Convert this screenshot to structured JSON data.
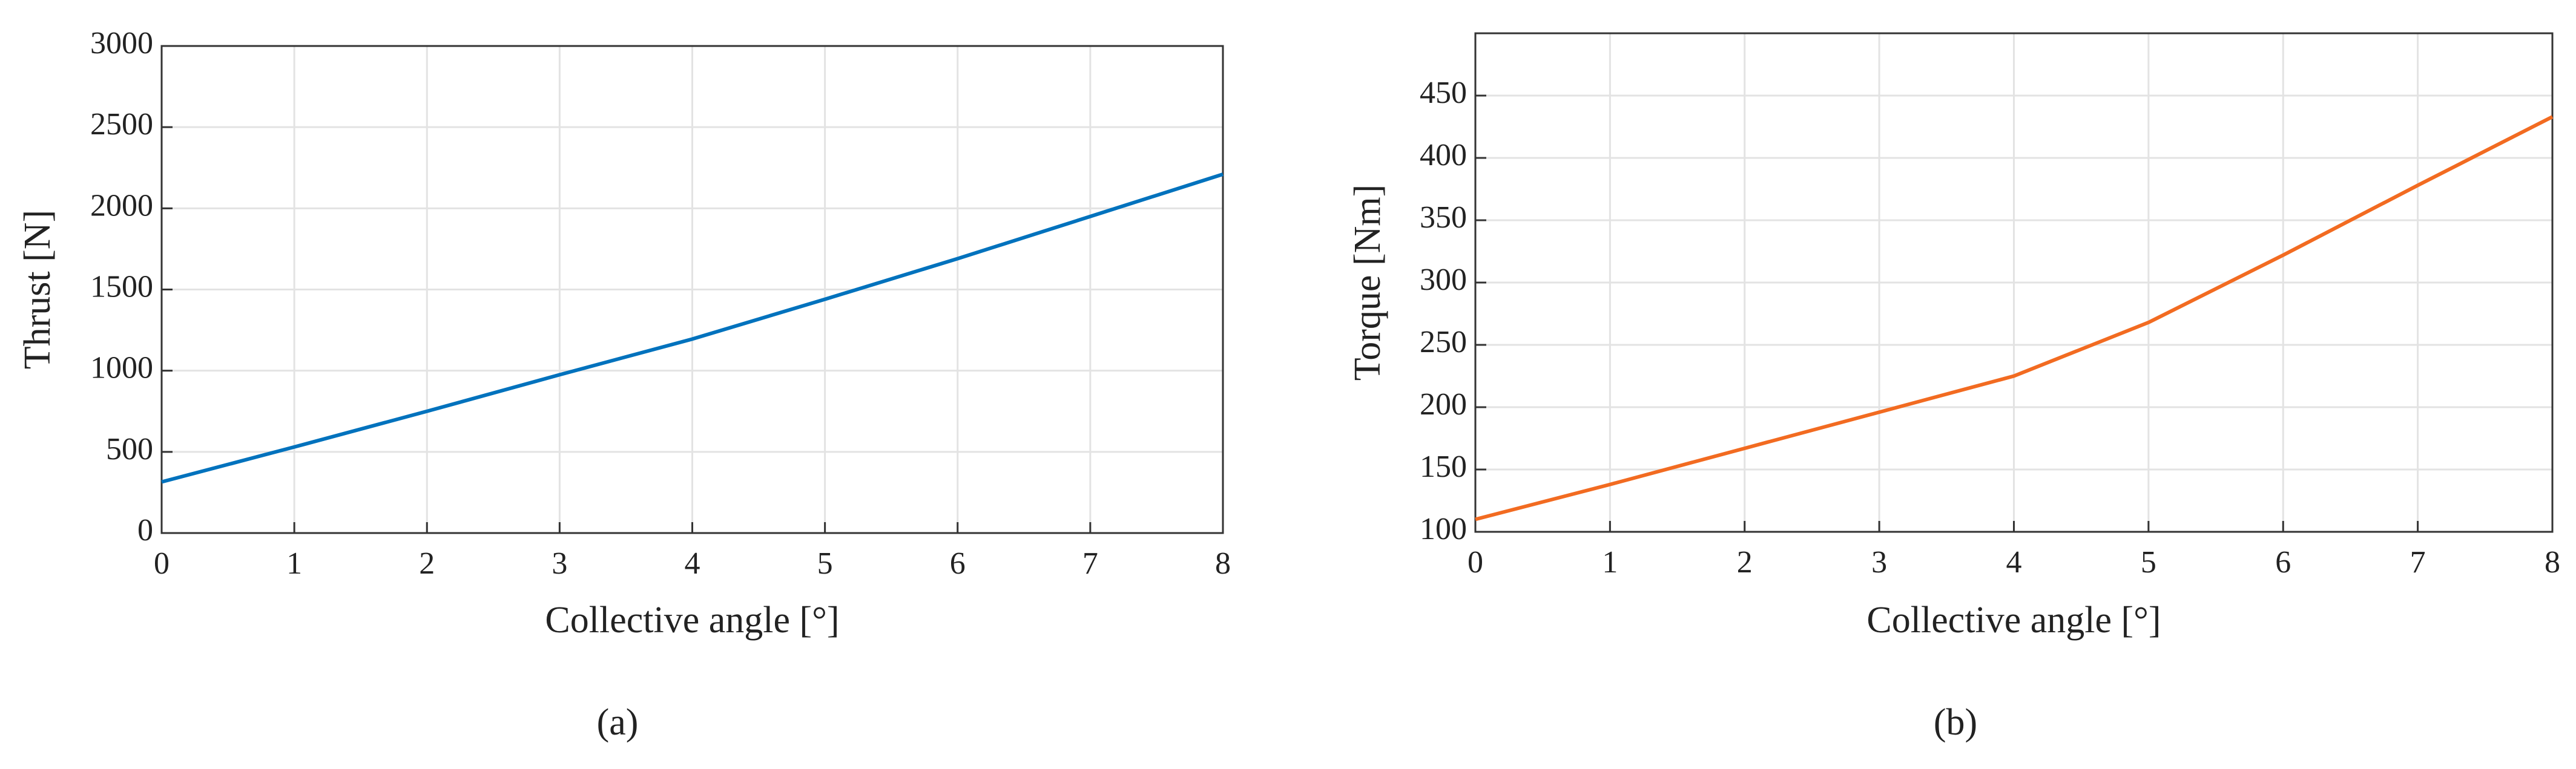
{
  "chart_data": [
    {
      "type": "line",
      "x_label": "Collective angle [°]",
      "y_label": "Thrust [N]",
      "caption": "(a)",
      "x": [
        0,
        1,
        2,
        3,
        4,
        5,
        6,
        7,
        8
      ],
      "series": [
        {
          "color": "#0072bd",
          "values": [
            315,
            530,
            750,
            975,
            1195,
            1440,
            1690,
            1950,
            2210
          ]
        }
      ],
      "xlim": [
        0,
        8
      ],
      "xticks": [
        0,
        1,
        2,
        3,
        4,
        5,
        6,
        7,
        8
      ],
      "ylim": [
        0,
        3000
      ],
      "yticks": [
        0,
        500,
        1000,
        1500,
        2000,
        2500,
        3000
      ],
      "grid": true
    },
    {
      "type": "line",
      "x_label": "Collective angle [°]",
      "y_label": "Torque [Nm]",
      "caption": "(b)",
      "x": [
        0,
        1,
        2,
        3,
        4,
        5,
        6,
        7,
        8
      ],
      "series": [
        {
          "color": "#f26b21",
          "values": [
            110,
            138,
            167,
            196,
            225,
            268,
            322,
            378,
            433
          ]
        }
      ],
      "xlim": [
        0,
        8
      ],
      "xticks": [
        0,
        1,
        2,
        3,
        4,
        5,
        6,
        7,
        8
      ],
      "ylim": [
        100,
        500
      ],
      "yticks": [
        100,
        150,
        200,
        250,
        300,
        350,
        400,
        450
      ],
      "grid": true
    }
  ]
}
